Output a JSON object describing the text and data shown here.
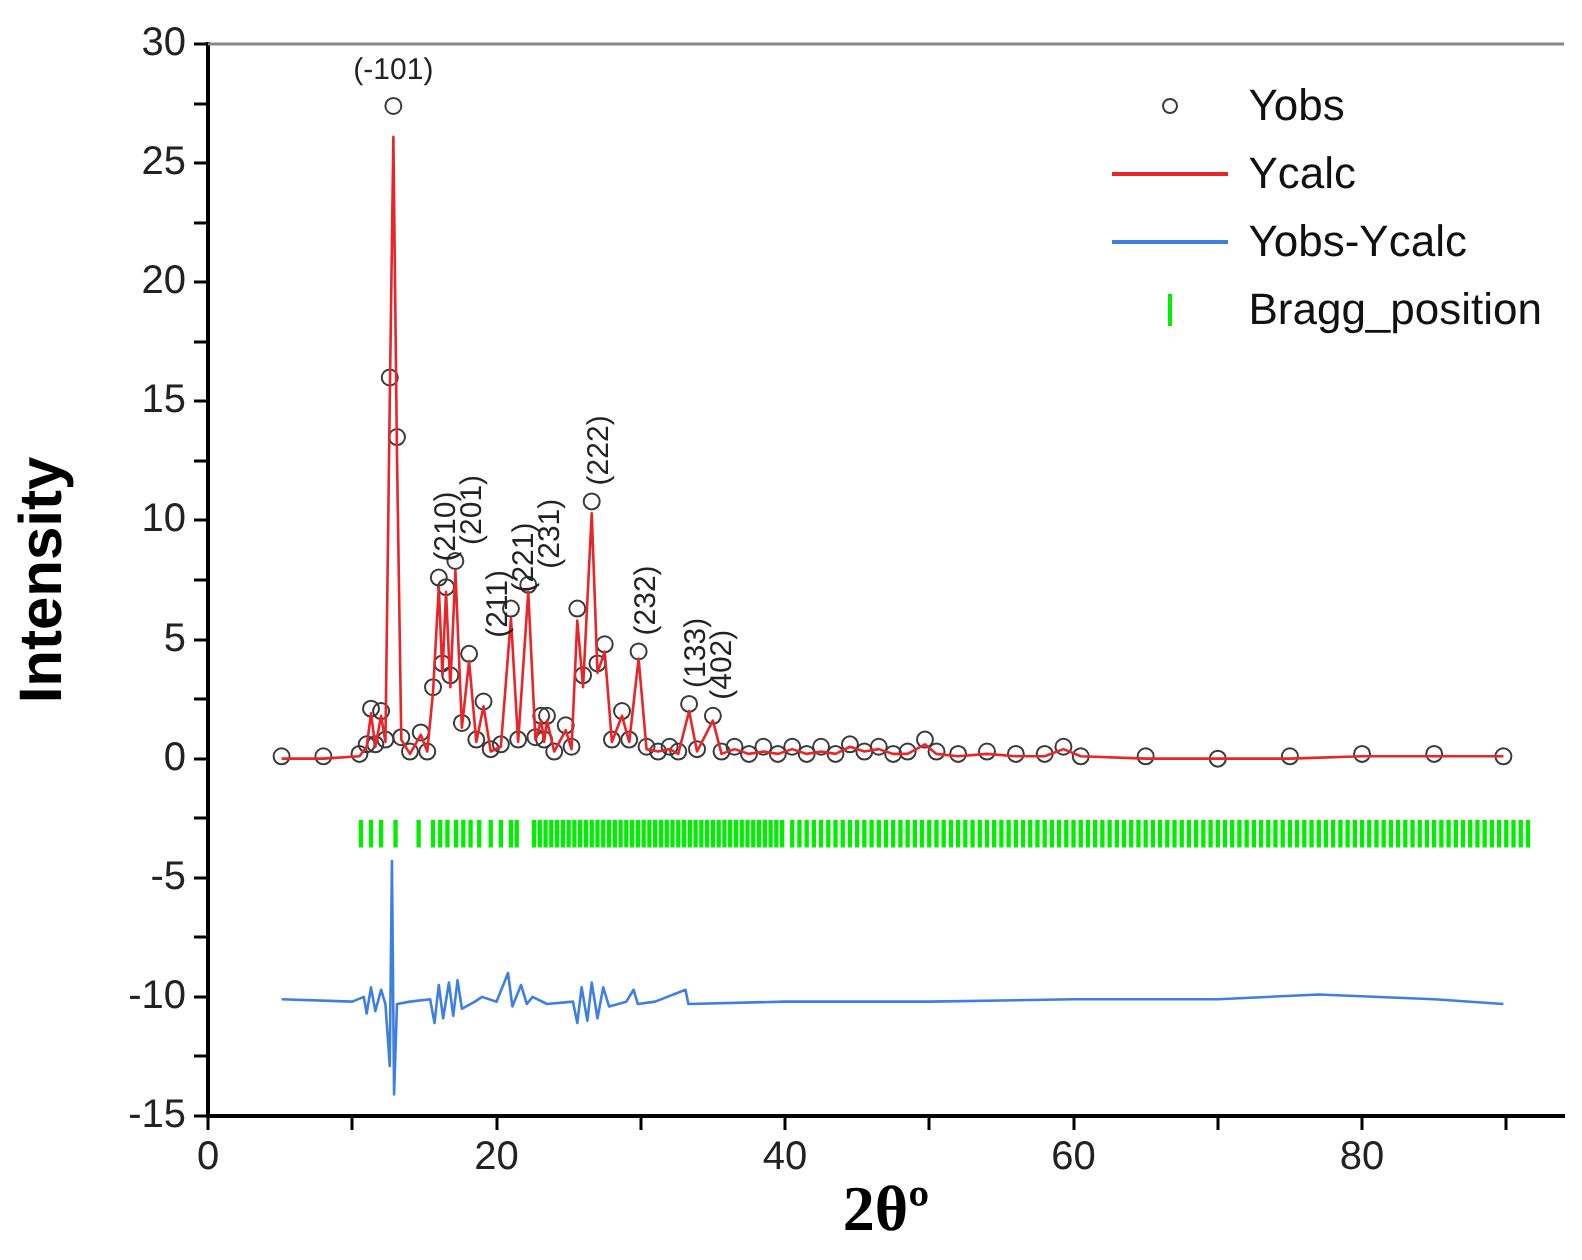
{
  "chart_data": {
    "type": "scatter",
    "xlabel": "2θº",
    "ylabel": "Intensity",
    "xlim": [
      0,
      94
    ],
    "ylim": [
      -15,
      30
    ],
    "xticks": [
      0,
      {
        "value": 10,
        "label": null
      },
      20,
      {
        "value": 30,
        "label": null
      },
      40,
      {
        "value": 50,
        "label": null
      },
      60,
      {
        "value": 70,
        "label": null
      },
      80,
      {
        "value": 90,
        "label": null
      }
    ],
    "yticks": [
      -15,
      {
        "value": -12.5,
        "label": null
      },
      -10,
      {
        "value": -7.5,
        "label": null
      },
      -5,
      {
        "value": -2.5,
        "label": null
      },
      0,
      {
        "value": 2.5,
        "label": null
      },
      5,
      {
        "value": 7.5,
        "label": null
      },
      10,
      {
        "value": 12.5,
        "label": null
      },
      15,
      {
        "value": 17.5,
        "label": null
      },
      20,
      {
        "value": 22.5,
        "label": null
      },
      25,
      {
        "value": 27.5,
        "label": null
      },
      30
    ],
    "grid": false,
    "legend": "top right",
    "x": [
      5.1,
      8,
      10.5,
      11.0,
      11.3,
      11.6,
      12.0,
      12.3,
      12.6,
      12.85,
      13.1,
      13.4,
      14.0,
      14.75,
      15.2,
      15.6,
      16.0,
      16.25,
      16.5,
      16.8,
      17.15,
      17.6,
      18.1,
      18.6,
      19.1,
      19.6,
      20.3,
      21.0,
      21.5,
      22.2,
      22.7,
      23.1,
      23.3,
      23.5,
      24.0,
      24.8,
      25.2,
      25.6,
      26.0,
      26.6,
      27.0,
      27.5,
      28.0,
      28.7,
      29.2,
      29.85,
      30.4,
      31.2,
      32.0,
      32.6,
      33.35,
      33.9,
      35.0,
      35.6,
      36.5,
      37.5,
      38.5,
      39.5,
      40.5,
      41.5,
      42.5,
      43.5,
      44.5,
      45.5,
      46.5,
      47.5,
      48.5,
      49.7,
      50.5,
      52,
      54,
      56,
      58,
      59.3,
      60.5,
      65,
      70,
      75,
      80,
      85,
      89.8
    ],
    "series": [
      {
        "name": "Yobs",
        "marker": "circle",
        "color": "#3a3a3a",
        "values": [
          0.1,
          0.1,
          0.2,
          0.6,
          2.1,
          0.6,
          2.0,
          0.8,
          16,
          27.4,
          13.5,
          0.9,
          0.3,
          1.1,
          0.3,
          3.0,
          7.6,
          4.0,
          7.2,
          3.5,
          8.3,
          1.5,
          4.4,
          0.8,
          2.4,
          0.4,
          0.6,
          6.3,
          0.8,
          7.3,
          0.9,
          1.8,
          0.8,
          1.8,
          0.3,
          1.4,
          0.5,
          6.3,
          3.5,
          10.8,
          4.0,
          4.8,
          0.8,
          2.0,
          0.8,
          4.5,
          0.5,
          0.3,
          0.5,
          0.3,
          2.3,
          0.4,
          1.8,
          0.3,
          0.5,
          0.2,
          0.5,
          0.2,
          0.5,
          0.2,
          0.5,
          0.2,
          0.6,
          0.3,
          0.5,
          0.2,
          0.3,
          0.8,
          0.3,
          0.2,
          0.3,
          0.2,
          0.2,
          0.5,
          0.1,
          0.1,
          0.0,
          0.1,
          0.2,
          0.2,
          0.1
        ]
      },
      {
        "name": "Ycalc",
        "type": "line",
        "marker": "none",
        "line_style": "solid",
        "color": "#e8262a",
        "values": [
          0.0,
          0.0,
          0.1,
          0.5,
          1.9,
          0.5,
          1.8,
          0.7,
          15,
          26.1,
          12.8,
          0.8,
          0.2,
          1.0,
          0.3,
          2.8,
          7.2,
          3.5,
          7.0,
          3.0,
          7.9,
          1.3,
          4.1,
          0.7,
          2.2,
          0.3,
          0.5,
          5.9,
          0.7,
          7.0,
          0.8,
          1.6,
          0.7,
          1.6,
          0.3,
          1.2,
          0.4,
          5.8,
          3.0,
          10.3,
          3.6,
          4.5,
          0.7,
          1.8,
          0.7,
          4.2,
          0.4,
          0.3,
          0.4,
          0.2,
          2.0,
          0.3,
          1.6,
          0.2,
          0.4,
          0.2,
          0.3,
          0.2,
          0.4,
          0.2,
          0.3,
          0.2,
          0.5,
          0.3,
          0.4,
          0.2,
          0.2,
          0.6,
          0.2,
          0.1,
          0.2,
          0.1,
          0.1,
          0.4,
          0.1,
          0.0,
          0.0,
          0.0,
          0.1,
          0.1,
          0.1
        ]
      },
      {
        "name": "Yobs-Ycalc",
        "type": "line",
        "marker": "none",
        "line_style": "solid",
        "color": "#3f7fe0",
        "x": [
          5.1,
          10,
          10.8,
          11.0,
          11.3,
          11.6,
          12.0,
          12.3,
          12.6,
          12.75,
          12.9,
          13.1,
          14,
          15.4,
          15.7,
          16.0,
          16.3,
          16.7,
          17.0,
          17.3,
          17.6,
          18.5,
          19.0,
          20,
          20.8,
          21.1,
          21.7,
          22.1,
          22.5,
          23.5,
          25.3,
          25.6,
          25.9,
          26.3,
          26.6,
          27.0,
          27.4,
          27.8,
          29.0,
          29.5,
          29.8,
          31,
          33.1,
          33.3,
          40,
          50,
          60,
          70,
          77,
          85,
          89.8
        ],
        "values": [
          -10.1,
          -10.2,
          -10.0,
          -10.7,
          -9.6,
          -10.6,
          -9.7,
          -10.3,
          -12.9,
          -4.3,
          -14.1,
          -10.3,
          -10.2,
          -10.1,
          -11.1,
          -9.5,
          -10.9,
          -9.4,
          -10.8,
          -9.3,
          -10.5,
          -10.2,
          -10.0,
          -10.2,
          -9.0,
          -10.4,
          -9.5,
          -10.3,
          -10.0,
          -10.3,
          -10.2,
          -11.1,
          -9.6,
          -11.0,
          -9.4,
          -10.9,
          -9.6,
          -10.4,
          -10.2,
          -9.7,
          -10.3,
          -10.2,
          -9.7,
          -10.3,
          -10.2,
          -10.2,
          -10.1,
          -10.1,
          -9.9,
          -10.1,
          -10.3
        ]
      },
      {
        "name": "Bragg_position",
        "type": "bar",
        "color": "#00ee00",
        "x": [
          10.6,
          11.3,
          12.0,
          13.0,
          14.6,
          15.6,
          16.1,
          16.6,
          17.2,
          17.7,
          18.2,
          18.8,
          19.6,
          20.3,
          21.0,
          21.4,
          22.6,
          23.0,
          23.4,
          23.8,
          24.2,
          24.6,
          25.0,
          25.4,
          25.8,
          26.2,
          26.6,
          27.0,
          27.4,
          27.8,
          28.2,
          28.6,
          29.0,
          29.4,
          29.8,
          30.2,
          30.6,
          31.0,
          31.4,
          31.8,
          32.2,
          32.6,
          33.0,
          33.4,
          33.8,
          34.2,
          34.6,
          35.0,
          35.4,
          35.8,
          36.2,
          36.6,
          37.0,
          37.4,
          37.8,
          38.2,
          38.6,
          39.0,
          39.4,
          39.8,
          40.5,
          41,
          41.5,
          42,
          42.5,
          43,
          43.5,
          44,
          44.5,
          45,
          45.5,
          46,
          46.5,
          47,
          47.5,
          48,
          48.5,
          49,
          49.5,
          50,
          50.5,
          51,
          51.5,
          52,
          52.5,
          53,
          53.5,
          54,
          54.5,
          55,
          55.5,
          56,
          56.5,
          57,
          57.5,
          58,
          58.5,
          59,
          59.5,
          60,
          60.5,
          61,
          61.5,
          62,
          62.5,
          63,
          63.5,
          64,
          64.5,
          65,
          65.5,
          66,
          66.5,
          67,
          67.5,
          68,
          68.5,
          69,
          69.5,
          70,
          70.5,
          71,
          71.5,
          72,
          72.5,
          73,
          73.5,
          74,
          74.5,
          75,
          75.5,
          76,
          76.5,
          77,
          77.5,
          78,
          78.5,
          79,
          79.5,
          80,
          80.5,
          81,
          81.5,
          82,
          82.5,
          83,
          83.5,
          84,
          84.5,
          85,
          85.5,
          86,
          86.5,
          87,
          87.5,
          88,
          88.5,
          89,
          89.5,
          90,
          90.5,
          91,
          91.5
        ],
        "base": [
          -3.7,
          -3.7,
          -3.7,
          -3.7,
          -3.7,
          -3.7,
          -3.7,
          -3.7,
          -3.7,
          -3.7,
          -3.7,
          -3.7,
          -3.7,
          -3.7,
          -3.7,
          -3.7,
          -3.7,
          -3.7,
          -3.7,
          -3.7,
          -3.7,
          -3.7,
          -3.7,
          -3.7,
          -3.7,
          -3.7,
          -3.7,
          -3.7,
          -3.7,
          -3.7,
          -3.7,
          -3.7,
          -3.7,
          -3.7,
          -3.7,
          -3.7,
          -3.7,
          -3.7,
          -3.7,
          -3.7,
          -3.7,
          -3.7,
          -3.7,
          -3.7,
          -3.7,
          -3.7,
          -3.7,
          -3.7,
          -3.7,
          -3.7,
          -3.7,
          -3.7,
          -3.7,
          -3.7,
          -3.7,
          -3.7,
          -3.7,
          -3.7,
          -3.7,
          -3.7,
          -3.7,
          -3.7,
          -3.7,
          -3.7,
          -3.7,
          -3.7,
          -3.7,
          -3.7,
          -3.7,
          -3.7,
          -3.7,
          -3.7,
          -3.7,
          -3.7,
          -3.7,
          -3.7,
          -3.7,
          -3.7,
          -3.7,
          -3.7,
          -3.7,
          -3.7,
          -3.7,
          -3.7,
          -3.7,
          -3.7,
          -3.7,
          -3.7,
          -3.7,
          -3.7,
          -3.7,
          -3.7,
          -3.7,
          -3.7,
          -3.7,
          -3.7,
          -3.7,
          -3.7,
          -3.7,
          -3.7,
          -3.7,
          -3.7,
          -3.7,
          -3.7,
          -3.7,
          -3.7,
          -3.7,
          -3.7,
          -3.7,
          -3.7,
          -3.7,
          -3.7,
          -3.7,
          -3.7,
          -3.7,
          -3.7,
          -3.7,
          -3.7,
          -3.7,
          -3.7,
          -3.7,
          -3.7,
          -3.7,
          -3.7,
          -3.7,
          -3.7,
          -3.7,
          -3.7,
          -3.7,
          -3.7,
          -3.7,
          -3.7,
          -3.7,
          -3.7,
          -3.7,
          -3.7,
          -3.7,
          -3.7,
          -3.7,
          -3.7,
          -3.7,
          -3.7,
          -3.7,
          -3.7,
          -3.7,
          -3.7,
          -3.7,
          -3.7,
          -3.7,
          -3.7,
          -3.7,
          -3.7,
          -3.7,
          -3.7,
          -3.7,
          -3.7,
          -3.7,
          -3.7,
          -3.7,
          -3.7,
          -3.7,
          -3.7,
          -3.7
        ],
        "values": [
          1.1,
          1.1,
          1.1,
          1.1,
          1.1,
          1.1,
          1.1,
          1.1,
          1.1,
          1.1,
          1.1,
          1.1,
          1.1,
          1.1,
          1.1,
          1.1,
          1.1,
          1.1,
          1.1,
          1.1,
          1.1,
          1.1,
          1.1,
          1.1,
          1.1,
          1.1,
          1.1,
          1.1,
          1.1,
          1.1,
          1.1,
          1.1,
          1.1,
          1.1,
          1.1,
          1.1,
          1.1,
          1.1,
          1.1,
          1.1,
          1.1,
          1.1,
          1.1,
          1.1,
          1.1,
          1.1,
          1.1,
          1.1,
          1.1,
          1.1,
          1.1,
          1.1,
          1.1,
          1.1,
          1.1,
          1.1,
          1.1,
          1.1,
          1.1,
          1.1,
          1.1,
          1.1,
          1.1,
          1.1,
          1.1,
          1.1,
          1.1,
          1.1,
          1.1,
          1.1,
          1.1,
          1.1,
          1.1,
          1.1,
          1.1,
          1.1,
          1.1,
          1.1,
          1.1,
          1.1,
          1.1,
          1.1,
          1.1,
          1.1,
          1.1,
          1.1,
          1.1,
          1.1,
          1.1,
          1.1,
          1.1,
          1.1,
          1.1,
          1.1,
          1.1,
          1.1,
          1.1,
          1.1,
          1.1,
          1.1,
          1.1,
          1.1,
          1.1,
          1.1,
          1.1,
          1.1,
          1.1,
          1.1,
          1.1,
          1.1,
          1.1,
          1.1,
          1.1,
          1.1,
          1.1,
          1.1,
          1.1,
          1.1,
          1.1,
          1.1,
          1.1,
          1.1,
          1.1,
          1.1,
          1.1,
          1.1,
          1.1,
          1.1,
          1.1,
          1.1,
          1.1,
          1.1,
          1.1,
          1.1,
          1.1,
          1.1,
          1.1,
          1.1,
          1.1,
          1.1,
          1.1,
          1.1,
          1.1,
          1.1,
          1.1,
          1.1,
          1.1,
          1.1,
          1.1,
          1.1,
          1.1,
          1.1,
          1.1,
          1.1,
          1.1,
          1.1,
          1.1,
          1.1,
          1.1,
          1.1,
          1.1,
          1.1,
          1.1
        ]
      }
    ],
    "annotations": [
      {
        "text": "(-101)",
        "x": 12.85,
        "y": 27.4
      },
      {
        "text": "(210)",
        "x": 16.0,
        "y": 7.6
      },
      {
        "text": "(201)",
        "x": 17.15,
        "y": 8.3
      },
      {
        "text": "(211)",
        "x": 18.1,
        "y": 4.4
      },
      {
        "text": "(221)",
        "x": 21.0,
        "y": 6.3
      },
      {
        "text": "(231)",
        "x": 22.2,
        "y": 7.3
      },
      {
        "text": "(222)",
        "x": 26.6,
        "y": 10.8
      },
      {
        "text": "(232)",
        "x": 29.85,
        "y": 4.5
      },
      {
        "text": "(133)",
        "x": 33.35,
        "y": 2.3
      },
      {
        "text": "(402)",
        "x": 35.0,
        "y": 1.8
      }
    ]
  }
}
